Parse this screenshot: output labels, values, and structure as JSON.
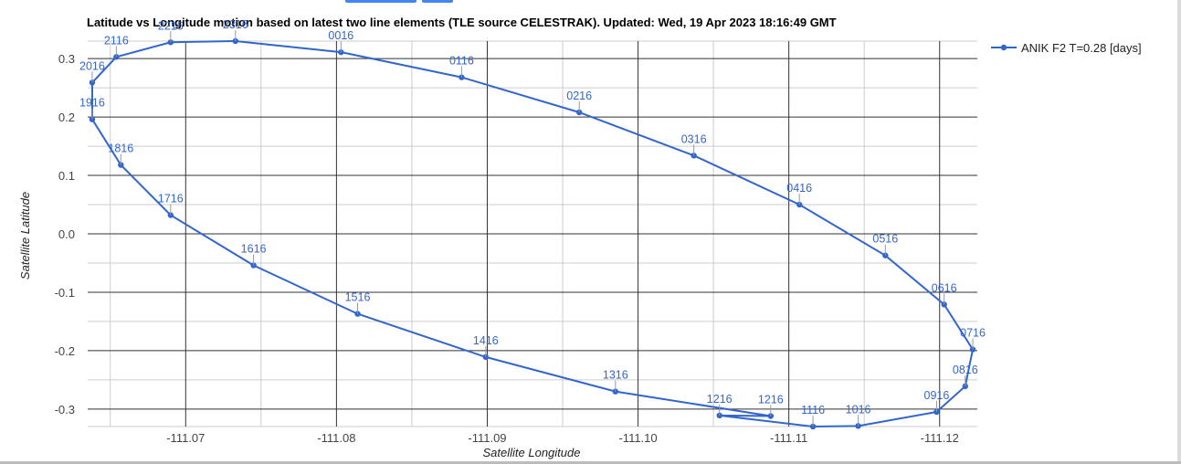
{
  "chart_data": {
    "type": "line",
    "title": "Latitude vs Longitude motion based on latest two line elements (TLE source CELESTRAK). Updated: Wed, 19 Apr 2023 18:16:49 GMT",
    "xlabel": "Satellite Longitude",
    "ylabel": "Satellite Latitude",
    "xlim": [
      -111.0635,
      -111.1225
    ],
    "ylim": [
      -0.33,
      0.33
    ],
    "x_reversed": true,
    "x_ticks": [
      "-111.07",
      "-111.08",
      "-111.09",
      "-111.10",
      "-111.11",
      "-111.12"
    ],
    "y_ticks": [
      "0.3",
      "0.2",
      "0.1",
      "0.0",
      "-0.1",
      "-0.2",
      "-0.3"
    ],
    "grid": true,
    "legend_position": "top-right",
    "series_color": "#3366cc",
    "series": [
      {
        "name": "ANIK F2 T=0.28 [days]",
        "points": [
          {
            "label": "0016",
            "x": -111.0803,
            "y": 0.311
          },
          {
            "label": "0116",
            "x": -111.0883,
            "y": 0.268
          },
          {
            "label": "0216",
            "x": -111.0961,
            "y": 0.208
          },
          {
            "label": "0316",
            "x": -111.1037,
            "y": 0.134
          },
          {
            "label": "0416",
            "x": -111.1107,
            "y": 0.05
          },
          {
            "label": "0516",
            "x": -111.1164,
            "y": -0.037
          },
          {
            "label": "0616",
            "x": -111.1203,
            "y": -0.121
          },
          {
            "label": "0716",
            "x": -111.1222,
            "y": -0.198
          },
          {
            "label": "0816",
            "x": -111.1217,
            "y": -0.261
          },
          {
            "label": "0916",
            "x": -111.1198,
            "y": -0.305
          },
          {
            "label": "1016",
            "x": -111.1146,
            "y": -0.329
          },
          {
            "label": "1116",
            "x": -111.1116,
            "y": -0.33
          },
          {
            "label": "1216",
            "x": -111.1054,
            "y": -0.311
          },
          {
            "label": "1216",
            "x": -111.1088,
            "y": -0.312
          },
          {
            "label": "1316",
            "x": -111.0985,
            "y": -0.27
          },
          {
            "label": "1416",
            "x": -111.0899,
            "y": -0.211
          },
          {
            "label": "1516",
            "x": -111.0814,
            "y": -0.137
          },
          {
            "label": "1616",
            "x": -111.0745,
            "y": -0.054
          },
          {
            "label": "1716",
            "x": -111.069,
            "y": 0.032
          },
          {
            "label": "1816",
            "x": -111.0657,
            "y": 0.118
          },
          {
            "label": "1916",
            "x": -111.0638,
            "y": 0.196
          },
          {
            "label": "2016",
            "x": -111.0638,
            "y": 0.259
          },
          {
            "label": "2116",
            "x": -111.0654,
            "y": 0.303
          },
          {
            "label": "2216",
            "x": -111.069,
            "y": 0.328
          },
          {
            "label": "2316",
            "x": -111.0733,
            "y": 0.33
          },
          {
            "label": "0016",
            "x": -111.0803,
            "y": 0.311
          }
        ]
      }
    ]
  }
}
